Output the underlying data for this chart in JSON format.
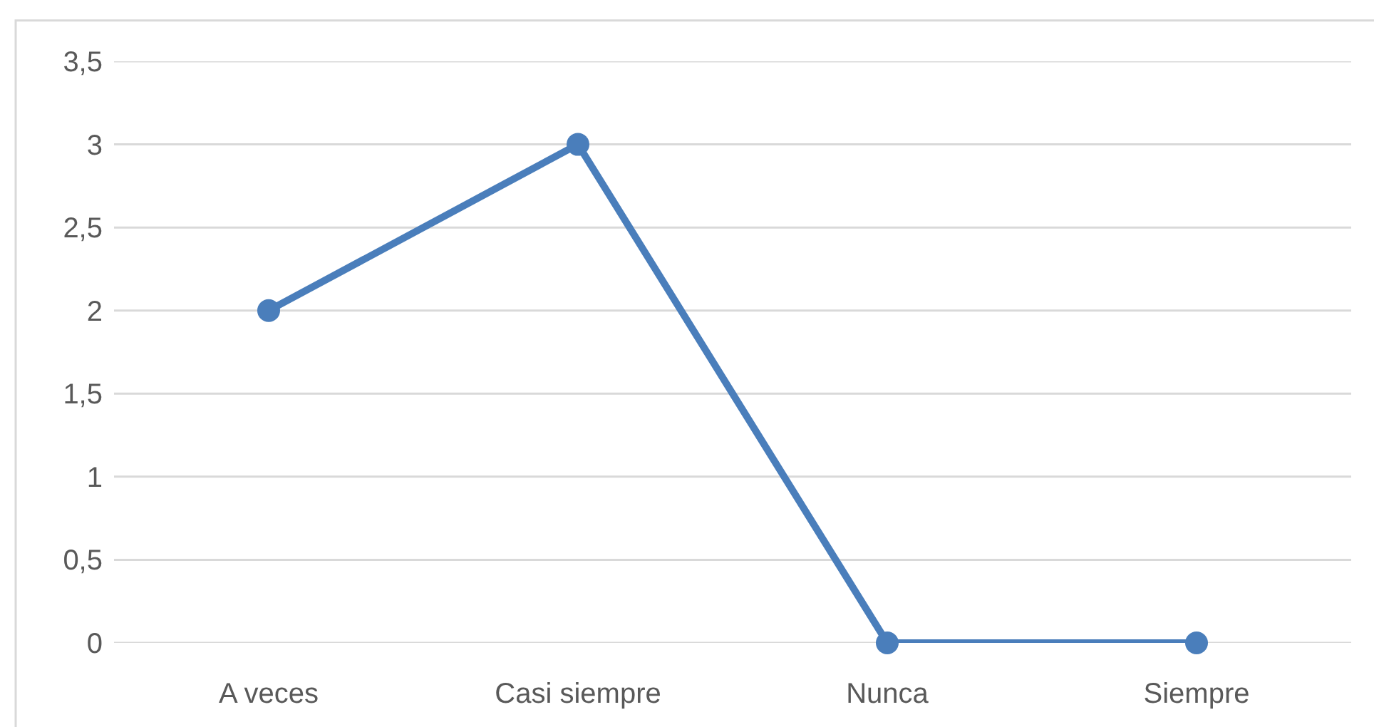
{
  "chart_data": {
    "type": "line",
    "categories": [
      "A veces",
      "Casi siempre",
      "Nunca",
      "Siempre"
    ],
    "series": [
      {
        "color": "#4a7ebb",
        "values": [
          2,
          3,
          0,
          0
        ]
      }
    ],
    "ylim": [
      0,
      3.5
    ],
    "yticks": [
      0,
      {
        "value": 0.5,
        "label": "0,5"
      },
      1,
      {
        "value": 1.5,
        "label": "1,5"
      },
      2,
      {
        "value": 2.5,
        "label": "2,5"
      },
      3,
      {
        "value": 3.5,
        "label": "3,5"
      }
    ],
    "grid": "y",
    "marker": "circle",
    "line_style": "solid"
  }
}
